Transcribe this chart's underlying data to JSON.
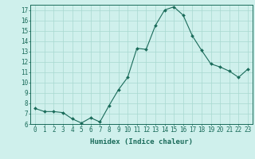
{
  "x": [
    0,
    1,
    2,
    3,
    4,
    5,
    6,
    7,
    8,
    9,
    10,
    11,
    12,
    13,
    14,
    15,
    16,
    17,
    18,
    19,
    20,
    21,
    22,
    23
  ],
  "y": [
    7.5,
    7.2,
    7.2,
    7.1,
    6.5,
    6.1,
    6.6,
    6.2,
    7.8,
    9.3,
    10.5,
    13.3,
    13.2,
    15.5,
    17.0,
    17.3,
    16.5,
    14.5,
    13.1,
    11.8,
    11.5,
    11.1,
    10.5,
    11.3
  ],
  "line_color": "#1a6b5a",
  "marker": "D",
  "marker_size": 2,
  "bg_color": "#cff0ec",
  "grid_color": "#a8d8d0",
  "ylim": [
    6,
    17.5
  ],
  "yticks": [
    6,
    7,
    8,
    9,
    10,
    11,
    12,
    13,
    14,
    15,
    16,
    17
  ],
  "xlim": [
    -0.5,
    23.5
  ],
  "xlabel": "Humidex (Indice chaleur)",
  "xlabel_fontsize": 6.5,
  "tick_fontsize": 5.5
}
